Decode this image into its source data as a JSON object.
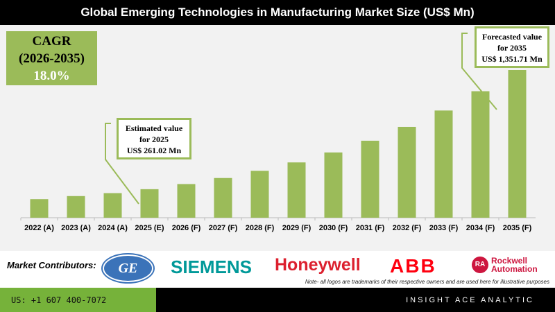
{
  "chart_data": {
    "type": "bar",
    "title": "Global Emerging Technologies in Manufacturing Market Size (US$ Mn)",
    "categories": [
      "2022 (A)",
      "2023 (A)",
      "2024 (A)",
      "2025 (E)",
      "2026 (F)",
      "2027 (F)",
      "2028 (F)",
      "2029 (F)",
      "2030 (F)",
      "2031 (F)",
      "2032 (F)",
      "2033 (F)",
      "2034 (F)",
      "2035 (F)"
    ],
    "values": [
      170,
      198,
      225,
      261.02,
      308.0,
      363.4,
      428.9,
      506.1,
      597.2,
      704.7,
      831.5,
      981.2,
      1157.8,
      1351.71
    ],
    "xlabel": "",
    "ylabel": "",
    "ylim": [
      0,
      1351.71
    ],
    "grid": false,
    "bar_color": "#9bbb59",
    "annotations": {
      "cagr": {
        "label": "CAGR",
        "period": "(2026-2035)",
        "value": "18.0%"
      },
      "estimated": {
        "line1": "Estimated value",
        "line2": "for 2025",
        "line3": "US$ 261.02 Mn"
      },
      "forecast": {
        "line1": "Forecasted value",
        "line2": "for 2035",
        "line3": "US$ 1,351.71 Mn"
      }
    }
  },
  "contributors": {
    "label": "Market Contributors:",
    "logos": [
      "GE",
      "SIEMENS",
      "Honeywell",
      "ABB",
      "Rockwell Automation"
    ],
    "note": "Note- all logos are trademarks of their respective owners and are used here for illustrative purposes"
  },
  "footer": {
    "phone": "US: +1 607 400-7072",
    "brand": "INSIGHT ACE ANALYTIC"
  }
}
